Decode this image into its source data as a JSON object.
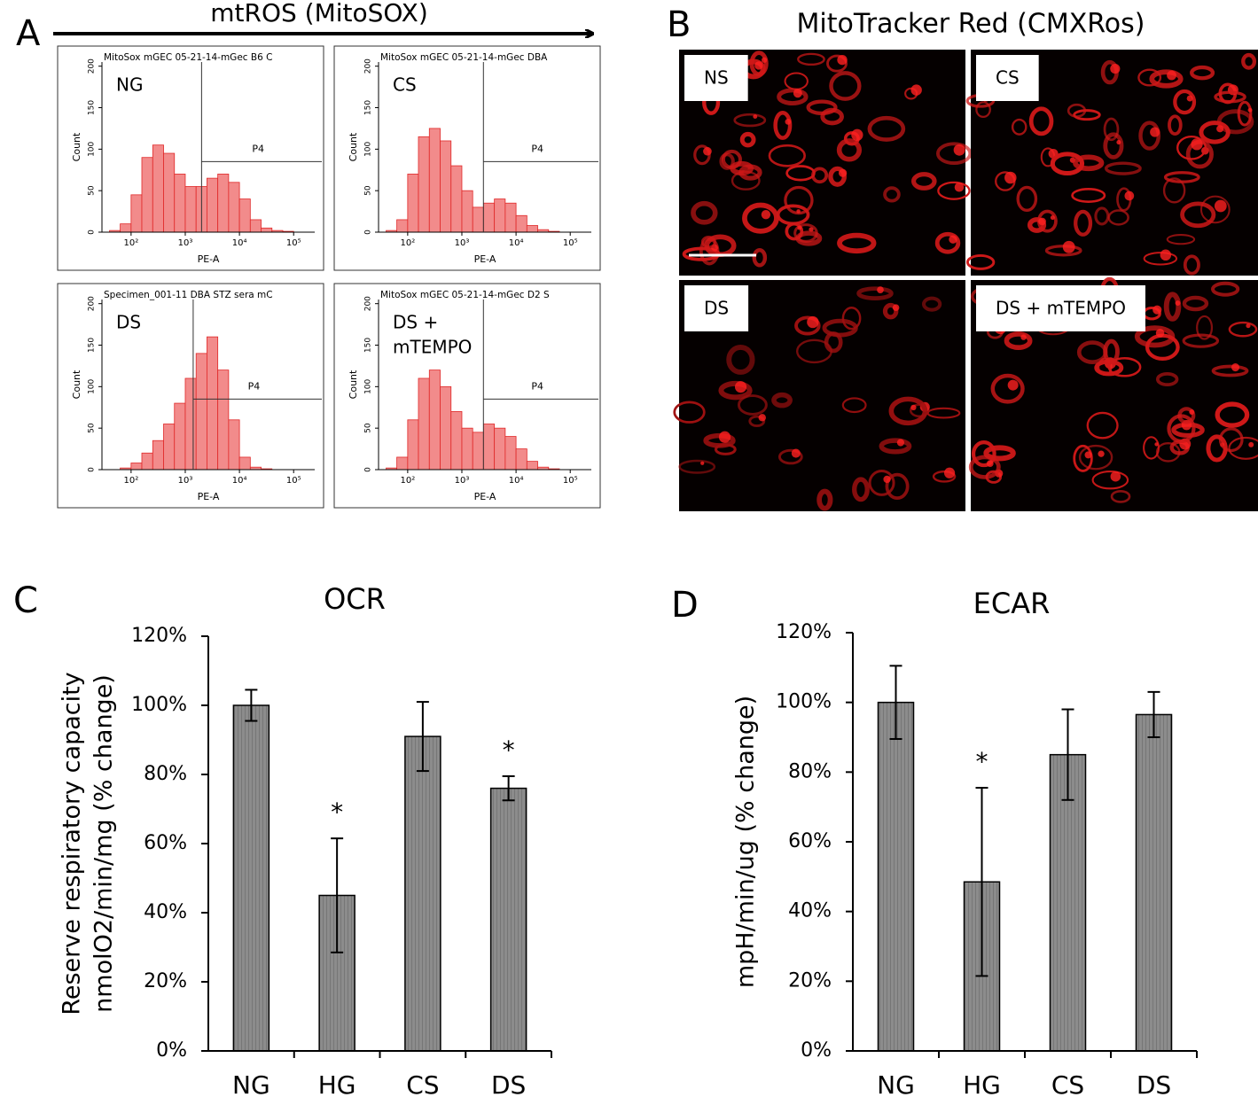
{
  "panels": {
    "A": {
      "letter": "A",
      "title": "mtROS (MitoSOX)"
    },
    "B": {
      "letter": "B",
      "title": "MitoTracker Red (CMXRos)",
      "images": [
        {
          "label": "NS"
        },
        {
          "label": "CS"
        },
        {
          "label": "DS"
        },
        {
          "label": "DS + mTEMPO"
        }
      ]
    }
  },
  "chart_data": [
    {
      "type": "histogram",
      "title": "MitoSox mGEC 05-21-14-mGec B6 C",
      "label": [
        "NG"
      ],
      "xlabel": "PE-A",
      "ylabel": "Count",
      "xscale": "log",
      "bins": [
        40,
        63,
        100,
        158,
        251,
        398,
        631,
        1000,
        1585,
        2512,
        3981,
        6310,
        10000,
        15849,
        25119,
        39811,
        63096,
        100000,
        158489
      ],
      "values": [
        2,
        10,
        45,
        90,
        105,
        95,
        70,
        55,
        55,
        65,
        70,
        60,
        40,
        15,
        5,
        2,
        1,
        0
      ],
      "color": "#f28b8b",
      "xlim": [
        29,
        245000
      ],
      "ylim": [
        0,
        205
      ],
      "xticks": [
        {
          "value": 100,
          "label": "10²"
        },
        {
          "value": 1000,
          "label": "10³"
        },
        {
          "value": 10000,
          "label": "10⁴"
        },
        {
          "value": 100000,
          "label": "10⁵"
        }
      ],
      "yticks": [
        0,
        50,
        100,
        150,
        200
      ],
      "gate": {
        "x": 2000,
        "y": 85,
        "label": "P4"
      }
    },
    {
      "type": "histogram",
      "title": "MitoSox mGEC 05-21-14-mGec DBA",
      "label": [
        "CS"
      ],
      "xlabel": "PE-A",
      "ylabel": "Count",
      "xscale": "log",
      "bins": [
        40,
        63,
        100,
        158,
        251,
        398,
        631,
        1000,
        1585,
        2512,
        3981,
        6310,
        10000,
        15849,
        25119,
        39811,
        63096,
        100000,
        158489
      ],
      "values": [
        2,
        15,
        70,
        115,
        125,
        110,
        80,
        50,
        30,
        35,
        40,
        35,
        20,
        8,
        3,
        1,
        0,
        0
      ],
      "color": "#f28b8b",
      "xlim": [
        29,
        245000
      ],
      "ylim": [
        0,
        205
      ],
      "xticks": [
        {
          "value": 100,
          "label": "10²"
        },
        {
          "value": 1000,
          "label": "10³"
        },
        {
          "value": 10000,
          "label": "10⁴"
        },
        {
          "value": 100000,
          "label": "10⁵"
        }
      ],
      "yticks": [
        0,
        50,
        100,
        150,
        200
      ],
      "gate": {
        "x": 2500,
        "y": 85,
        "label": "P4"
      }
    },
    {
      "type": "histogram",
      "title": "Specimen_001-11 DBA STZ sera mC",
      "label": [
        "DS"
      ],
      "xlabel": "PE-A",
      "ylabel": "Count",
      "xscale": "log",
      "bins": [
        40,
        63,
        100,
        158,
        251,
        398,
        631,
        1000,
        1585,
        2512,
        3981,
        6310,
        10000,
        15849,
        25119,
        39811,
        63096,
        100000,
        158489
      ],
      "values": [
        0,
        2,
        8,
        20,
        35,
        55,
        80,
        110,
        140,
        160,
        120,
        60,
        15,
        3,
        1,
        0,
        0,
        0
      ],
      "color": "#f28b8b",
      "xlim": [
        29,
        245000
      ],
      "ylim": [
        0,
        205
      ],
      "xticks": [
        {
          "value": 100,
          "label": "10²"
        },
        {
          "value": 1000,
          "label": "10³"
        },
        {
          "value": 10000,
          "label": "10⁴"
        },
        {
          "value": 100000,
          "label": "10⁵"
        }
      ],
      "yticks": [
        0,
        50,
        100,
        150,
        200
      ],
      "gate": {
        "x": 1400,
        "y": 85,
        "label": "P4"
      }
    },
    {
      "type": "histogram",
      "title": "MitoSox mGEC 05-21-14-mGec D2 S",
      "label": [
        "DS +",
        "mTEMPO"
      ],
      "xlabel": "PE-A",
      "ylabel": "Count",
      "xscale": "log",
      "bins": [
        40,
        63,
        100,
        158,
        251,
        398,
        631,
        1000,
        1585,
        2512,
        3981,
        6310,
        10000,
        15849,
        25119,
        39811,
        63096,
        100000,
        158489
      ],
      "values": [
        2,
        15,
        60,
        110,
        120,
        100,
        70,
        50,
        45,
        55,
        50,
        40,
        25,
        10,
        3,
        1,
        0,
        0
      ],
      "color": "#f28b8b",
      "xlim": [
        29,
        245000
      ],
      "ylim": [
        0,
        205
      ],
      "xticks": [
        {
          "value": 100,
          "label": "10²"
        },
        {
          "value": 1000,
          "label": "10³"
        },
        {
          "value": 10000,
          "label": "10⁴"
        },
        {
          "value": 100000,
          "label": "10⁵"
        }
      ],
      "yticks": [
        0,
        50,
        100,
        150,
        200
      ],
      "gate": {
        "x": 2500,
        "y": 85,
        "label": "P4"
      }
    },
    {
      "type": "bar",
      "panel_label": "C",
      "title": "OCR",
      "ylabel": [
        "Reserve respiratory capacity",
        "nmolO2/min/mg (% change)"
      ],
      "categories": [
        "NG",
        "HG",
        "CS",
        "DS"
      ],
      "values": [
        100,
        45,
        91,
        76
      ],
      "errors": [
        4.5,
        16.5,
        10,
        3.5
      ],
      "annotations": [
        null,
        "*",
        null,
        "*"
      ],
      "color": "#8c8c8c",
      "ylim": [
        0,
        120
      ],
      "yticks": [
        {
          "value": 0,
          "label": "0%"
        },
        {
          "value": 20,
          "label": "20%"
        },
        {
          "value": 40,
          "label": "40%"
        },
        {
          "value": 60,
          "label": "60%"
        },
        {
          "value": 80,
          "label": "80%"
        },
        {
          "value": 100,
          "label": "100%"
        },
        {
          "value": 120,
          "label": "120%"
        }
      ]
    },
    {
      "type": "bar",
      "panel_label": "D",
      "title": "ECAR",
      "ylabel": [
        "mpH/min/ug (% change)"
      ],
      "categories": [
        "NG",
        "HG",
        "CS",
        "DS"
      ],
      "values": [
        100,
        48.5,
        85,
        96.5
      ],
      "errors": [
        10.5,
        27,
        13,
        6.5
      ],
      "annotations": [
        null,
        "*",
        null,
        null
      ],
      "color": "#8c8c8c",
      "ylim": [
        0,
        120
      ],
      "yticks": [
        {
          "value": 0,
          "label": "0%"
        },
        {
          "value": 20,
          "label": "20%"
        },
        {
          "value": 40,
          "label": "40%"
        },
        {
          "value": 60,
          "label": "60%"
        },
        {
          "value": 80,
          "label": "80%"
        },
        {
          "value": 100,
          "label": "100%"
        },
        {
          "value": 120,
          "label": "120%"
        }
      ]
    }
  ]
}
